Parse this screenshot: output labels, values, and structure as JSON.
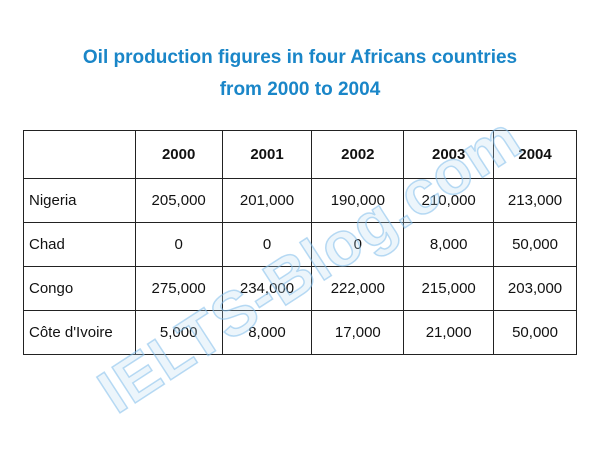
{
  "title": [
    "Oil production figures in four Africans countries",
    "from 2000 to 2004"
  ],
  "watermark": "IELTS-Blog.com",
  "table": {
    "columns": [
      "2000",
      "2001",
      "2002",
      "2003",
      "2004"
    ],
    "rows": [
      {
        "label": "Nigeria",
        "values": [
          "205,000",
          "201,000",
          "190,000",
          "210,000",
          "213,000"
        ]
      },
      {
        "label": "Chad",
        "values": [
          "0",
          "0",
          "0",
          "8,000",
          "50,000"
        ]
      },
      {
        "label": "Congo",
        "values": [
          "275,000",
          "234,000",
          "222,000",
          "215,000",
          "203,000"
        ]
      },
      {
        "label": "Côte d'Ivoire",
        "values": [
          "5,000",
          "8,000",
          "17,000",
          "21,000",
          "50,000"
        ]
      }
    ]
  }
}
